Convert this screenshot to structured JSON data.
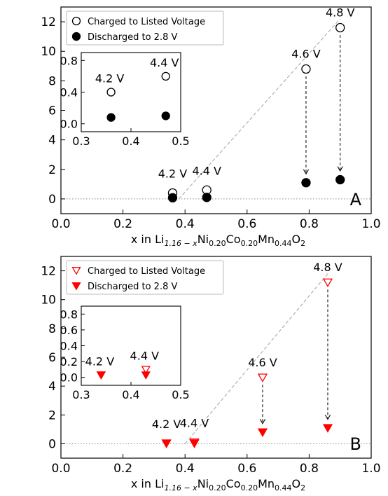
{
  "chart_data": [
    {
      "panel_letter": "A",
      "type": "scatter",
      "ylabel_line1": "% moles QOR-O₂ titrated/",
      "ylabel_line2": "moles LR-NMC",
      "xlabel": "x in Li1.16−xNi0.20Co0.20Mn0.44O2",
      "xlim": [
        0.0,
        1.0
      ],
      "ylim": [
        -1,
        13
      ],
      "xticks": [
        0.0,
        0.2,
        0.4,
        0.6,
        0.8,
        1.0
      ],
      "yticks": [
        0,
        2,
        4,
        6,
        8,
        10,
        12
      ],
      "grid": false,
      "legend_position": "top-left",
      "marker_shape": "circle",
      "series": [
        {
          "name": "Charged to Listed Voltage",
          "style": "open",
          "color": "#000000",
          "x": [
            0.36,
            0.47,
            0.79,
            0.9
          ],
          "y": [
            0.4,
            0.6,
            8.8,
            11.6
          ]
        },
        {
          "name": "Discharged to 2.8 V",
          "style": "filled",
          "color": "#000000",
          "x": [
            0.36,
            0.47,
            0.79,
            0.9
          ],
          "y": [
            0.08,
            0.1,
            1.1,
            1.3
          ]
        }
      ],
      "point_labels": [
        {
          "text": "4.2 V",
          "x": 0.36,
          "y": 0.4
        },
        {
          "text": "4.4 V",
          "x": 0.47,
          "y": 0.6
        },
        {
          "text": "4.6 V",
          "x": 0.79,
          "y": 8.8
        },
        {
          "text": "4.8 V",
          "x": 0.9,
          "y": 11.6
        }
      ],
      "trend_line": {
        "x": [
          0.38,
          0.9
        ],
        "y": [
          0.0,
          12.2
        ]
      },
      "arrows": [
        {
          "x": 0.79,
          "y_from": 8.3,
          "y_to": 1.7
        },
        {
          "x": 0.9,
          "y_from": 11.1,
          "y_to": 1.9
        }
      ],
      "inset": {
        "xlim": [
          0.3,
          0.5
        ],
        "ylim": [
          -0.1,
          0.9
        ],
        "xticks": [
          0.3,
          0.4,
          0.5
        ],
        "yticks": [
          0.0,
          0.4,
          0.8
        ],
        "labels": [
          {
            "text": "4.2 V",
            "x": 0.36
          },
          {
            "text": "4.4 V",
            "x": 0.47
          }
        ]
      }
    },
    {
      "panel_letter": "B",
      "type": "scatter",
      "ylabel_line1": "% moles QOR-O₂ titrated/",
      "ylabel_line2": "moles LR-NMC",
      "xlabel": "x in Li1.16−xNi0.20Co0.20Mn0.44O2",
      "xlim": [
        0.0,
        1.0
      ],
      "ylim": [
        -1,
        13
      ],
      "xticks": [
        0.0,
        0.2,
        0.4,
        0.6,
        0.8,
        1.0
      ],
      "yticks": [
        0,
        2,
        4,
        6,
        8,
        10,
        12
      ],
      "grid": false,
      "legend_position": "top-left",
      "marker_shape": "triangle-down",
      "series": [
        {
          "name": "Charged to Listed Voltage",
          "style": "open",
          "color": "#ff0000",
          "x": [
            0.34,
            0.43,
            0.65,
            0.86
          ],
          "y": [
            0.03,
            0.1,
            4.6,
            11.2
          ]
        },
        {
          "name": "Discharged to 2.8 V",
          "style": "filled",
          "color": "#ff0000",
          "x": [
            0.34,
            0.43,
            0.65,
            0.86
          ],
          "y": [
            0.03,
            0.03,
            0.8,
            1.1
          ]
        }
      ],
      "point_labels": [
        {
          "text": "4.2 V",
          "x": 0.34,
          "y": 0.03
        },
        {
          "text": "4.4 V",
          "x": 0.43,
          "y": 0.1
        },
        {
          "text": "4.6 V",
          "x": 0.65,
          "y": 4.6
        },
        {
          "text": "4.8 V",
          "x": 0.86,
          "y": 11.2
        }
      ],
      "trend_line": {
        "x": [
          0.4,
          0.86
        ],
        "y": [
          0.0,
          11.8
        ]
      },
      "arrows": [
        {
          "x": 0.65,
          "y_from": 4.1,
          "y_to": 1.4
        },
        {
          "x": 0.86,
          "y_from": 10.7,
          "y_to": 1.7
        }
      ],
      "inset": {
        "xlim": [
          0.3,
          0.5
        ],
        "ylim": [
          -0.1,
          0.9
        ],
        "xticks": [
          0.3,
          0.4,
          0.5
        ],
        "yticks": [
          0.0,
          0.2,
          0.4,
          0.6,
          0.8
        ],
        "labels": [
          {
            "text": "4.2 V",
            "x": 0.34
          },
          {
            "text": "4.4 V",
            "x": 0.43
          }
        ]
      }
    }
  ]
}
